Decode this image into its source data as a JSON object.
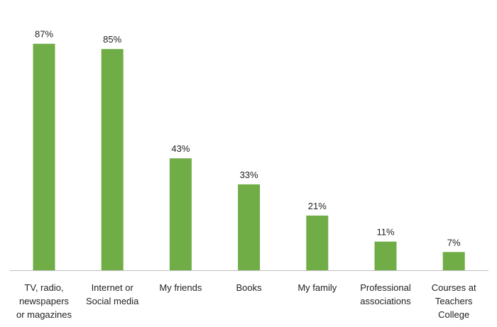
{
  "chart_data": {
    "type": "bar",
    "categories": [
      [
        "TV, radio,",
        "newspapers",
        "or magazines"
      ],
      [
        "Internet or",
        "Social media"
      ],
      [
        "My friends"
      ],
      [
        "Books"
      ],
      [
        "My family"
      ],
      [
        "Professional",
        "associations"
      ],
      [
        "Courses at",
        "Teachers",
        "College"
      ]
    ],
    "values": [
      87,
      85,
      43,
      33,
      21,
      11,
      7
    ],
    "value_labels": [
      "87%",
      "85%",
      "43%",
      "33%",
      "21%",
      "11%",
      "7%"
    ],
    "ylim": [
      0,
      100
    ],
    "grid": false,
    "legend": "none",
    "colors": {
      "bar": "#70AD47",
      "axis": "#BFBFBF",
      "text": "#222222"
    }
  }
}
